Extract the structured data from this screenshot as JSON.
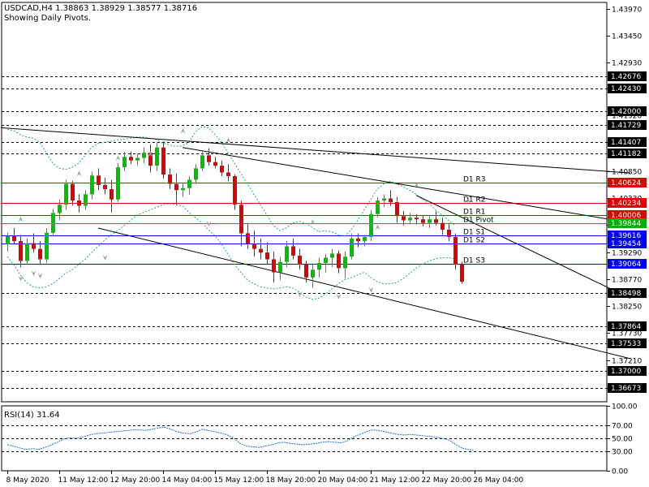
{
  "header": {
    "symbol_line": "USDCAD,H4  1.38863 1.38929 1.38577 1.38716",
    "subtitle": "Showing Daily Pivots."
  },
  "rsi_label": "RSI(14) 31.64",
  "colors": {
    "bull": "#00c000",
    "bear": "#e00000",
    "support": "#0000ff",
    "resistance": "#e00000",
    "pivot": "#00b000",
    "bands": "#1faf5f",
    "trendline": "#000000",
    "fractal": "#a0a0a0"
  },
  "chart_data": [
    {
      "type": "candlestick",
      "price_ticks": [
        "1.43970",
        "1.43450",
        "1.42930",
        "1.42430",
        "1.41920",
        "1.41407",
        "1.40850",
        "1.40330",
        "1.39810",
        "1.39290",
        "1.38770",
        "1.38250",
        "1.37730",
        "1.37210",
        "1.36673"
      ],
      "price_ticks_values": [
        1.4397,
        1.4345,
        1.4293,
        1.4243,
        1.4192,
        1.41407,
        1.4085,
        1.4033,
        1.3981,
        1.3929,
        1.3877,
        1.3825,
        1.3773,
        1.3721,
        1.36673
      ],
      "ylim": [
        1.3641,
        1.4409
      ],
      "x_tick_labels": [
        "8 May 2020",
        "11 May 12:00",
        "12 May 20:00",
        "14 May 04:00",
        "15 May 12:00",
        "18 May 20:00",
        "20 May 04:00",
        "21 May 12:00",
        "22 May 20:00",
        "26 May 04:00"
      ],
      "x_tick_index": [
        0,
        8,
        16,
        24,
        32,
        40,
        48,
        56,
        64,
        72
      ],
      "dashed_levels": [
        1.42676,
        1.4243,
        1.42,
        1.41729,
        1.41407,
        1.41182,
        1.38498,
        1.37864,
        1.37533,
        1.37,
        1.36673
      ],
      "highlight_labels": [
        {
          "label": "1.42676",
          "value": 1.42676,
          "color": "#000000"
        },
        {
          "label": "1.42430",
          "value": 1.4243,
          "color": "#000000"
        },
        {
          "label": "1.42000",
          "value": 1.42,
          "color": "#000000"
        },
        {
          "label": "1.41729",
          "value": 1.41729,
          "color": "#000000"
        },
        {
          "label": "1.41407",
          "value": 1.41407,
          "color": "#000000"
        },
        {
          "label": "1.41182",
          "value": 1.41182,
          "color": "#000000"
        },
        {
          "label": "1.40624",
          "value": 1.40624,
          "color": "#e00000"
        },
        {
          "label": "1.40234",
          "value": 1.40234,
          "color": "#e00000"
        },
        {
          "label": "1.40006",
          "value": 1.40006,
          "color": "#e00000"
        },
        {
          "label": "1.39844",
          "value": 1.39844,
          "color": "#00b000"
        },
        {
          "label": "1.39616",
          "value": 1.39616,
          "color": "#0000ff"
        },
        {
          "label": "1.39454",
          "value": 1.39454,
          "color": "#0000ff"
        },
        {
          "label": "1.39064",
          "value": 1.39064,
          "color": "#0000ff"
        },
        {
          "label": "1.38498",
          "value": 1.38498,
          "color": "#000000"
        },
        {
          "label": "1.37864",
          "value": 1.37864,
          "color": "#000000"
        },
        {
          "label": "1.37533",
          "value": 1.37533,
          "color": "#000000"
        },
        {
          "label": "1.37000",
          "value": 1.37,
          "color": "#000000"
        },
        {
          "label": "1.36673",
          "value": 1.36673,
          "color": "#000000"
        }
      ],
      "pivots": [
        {
          "name": "D1 R3",
          "value": 1.40624,
          "color": "#e00000"
        },
        {
          "name": "D1 R2",
          "value": 1.40234,
          "color": "#e00000"
        },
        {
          "name": "D1 R1",
          "value": 1.40006,
          "color": "#e00000"
        },
        {
          "name": "D1 Pivot",
          "value": 1.39844,
          "color": "#00b000"
        },
        {
          "name": "D1 S1",
          "value": 1.39616,
          "color": "#0000ff"
        },
        {
          "name": "D1 S2",
          "value": 1.39454,
          "color": "#0000ff"
        },
        {
          "name": "D1 S3",
          "value": 1.39064,
          "color": "#0000ff"
        }
      ],
      "candles": [
        [
          1.3944,
          1.3966,
          1.393,
          1.396
        ],
        [
          1.396,
          1.3975,
          1.3945,
          1.395
        ],
        [
          1.395,
          1.3962,
          1.39,
          1.3912
        ],
        [
          1.3912,
          1.3955,
          1.3905,
          1.3946
        ],
        [
          1.3946,
          1.3965,
          1.3928,
          1.3935
        ],
        [
          1.3935,
          1.395,
          1.3905,
          1.3915
        ],
        [
          1.3915,
          1.3975,
          1.3908,
          1.3966
        ],
        [
          1.3966,
          1.4012,
          1.396,
          1.4004
        ],
        [
          1.4004,
          1.403,
          1.399,
          1.402
        ],
        [
          1.402,
          1.4068,
          1.401,
          1.406
        ],
        [
          1.406,
          1.4066,
          1.4018,
          1.4028
        ],
        [
          1.4028,
          1.404,
          1.4005,
          1.4018
        ],
        [
          1.4018,
          1.4048,
          1.401,
          1.404
        ],
        [
          1.404,
          1.4084,
          1.403,
          1.4076
        ],
        [
          1.4076,
          1.409,
          1.4048,
          1.4058
        ],
        [
          1.4058,
          1.4072,
          1.404,
          1.405
        ],
        [
          1.405,
          1.4068,
          1.4005,
          1.403
        ],
        [
          1.403,
          1.41,
          1.4025,
          1.4092
        ],
        [
          1.4092,
          1.4122,
          1.4085,
          1.4112
        ],
        [
          1.4112,
          1.4122,
          1.4098,
          1.4105
        ],
        [
          1.4105,
          1.4118,
          1.4095,
          1.411
        ],
        [
          1.411,
          1.413,
          1.41,
          1.412
        ],
        [
          1.412,
          1.4136,
          1.4082,
          1.4095
        ],
        [
          1.4095,
          1.414,
          1.4085,
          1.413
        ],
        [
          1.413,
          1.4142,
          1.407,
          1.4078
        ],
        [
          1.4078,
          1.409,
          1.405,
          1.406
        ],
        [
          1.406,
          1.408,
          1.402,
          1.4048
        ],
        [
          1.4048,
          1.4062,
          1.4035,
          1.4052
        ],
        [
          1.4052,
          1.4075,
          1.404,
          1.4068
        ],
        [
          1.4068,
          1.4098,
          1.406,
          1.409
        ],
        [
          1.409,
          1.4125,
          1.4085,
          1.4115
        ],
        [
          1.4115,
          1.4128,
          1.4095,
          1.4102
        ],
        [
          1.4102,
          1.4112,
          1.409,
          1.4095
        ],
        [
          1.4095,
          1.4105,
          1.4075,
          1.4082
        ],
        [
          1.4082,
          1.4098,
          1.4065,
          1.4075
        ],
        [
          1.4075,
          1.4078,
          1.401,
          1.402
        ],
        [
          1.402,
          1.4028,
          1.394,
          1.3965
        ],
        [
          1.3965,
          1.3985,
          1.3935,
          1.3945
        ],
        [
          1.3945,
          1.397,
          1.392,
          1.3935
        ],
        [
          1.3935,
          1.3955,
          1.3915,
          1.3928
        ],
        [
          1.3928,
          1.3948,
          1.3905,
          1.3915
        ],
        [
          1.3915,
          1.393,
          1.387,
          1.389
        ],
        [
          1.389,
          1.392,
          1.3875,
          1.391
        ],
        [
          1.391,
          1.395,
          1.39,
          1.394
        ],
        [
          1.394,
          1.3955,
          1.3915,
          1.3922
        ],
        [
          1.3922,
          1.3935,
          1.3895,
          1.3905
        ],
        [
          1.3905,
          1.3912,
          1.387,
          1.388
        ],
        [
          1.388,
          1.3905,
          1.386,
          1.3895
        ],
        [
          1.3895,
          1.3918,
          1.388,
          1.3908
        ],
        [
          1.3908,
          1.3925,
          1.389,
          1.3918
        ],
        [
          1.3918,
          1.3935,
          1.39,
          1.3926
        ],
        [
          1.3926,
          1.3932,
          1.3888,
          1.3898
        ],
        [
          1.3898,
          1.393,
          1.3878,
          1.392
        ],
        [
          1.392,
          1.3965,
          1.3915,
          1.3955
        ],
        [
          1.3955,
          1.3965,
          1.3938,
          1.395
        ],
        [
          1.395,
          1.3962,
          1.394,
          1.3958
        ],
        [
          1.3958,
          1.401,
          1.395,
          1.4002
        ],
        [
          1.4002,
          1.4035,
          1.3995,
          1.4028
        ],
        [
          1.4028,
          1.404,
          1.4015,
          1.4032
        ],
        [
          1.4032,
          1.4048,
          1.4018,
          1.4025
        ],
        [
          1.4025,
          1.4035,
          1.3985,
          1.3998
        ],
        [
          1.3998,
          1.4008,
          1.398,
          1.399
        ],
        [
          1.399,
          1.4004,
          1.3982,
          1.3995
        ],
        [
          1.3995,
          1.4002,
          1.3982,
          1.3992
        ],
        [
          1.3992,
          1.4,
          1.3978,
          1.3985
        ],
        [
          1.3985,
          1.3998,
          1.3975,
          1.3992
        ],
        [
          1.3992,
          1.4008,
          1.398,
          1.3985
        ],
        [
          1.3985,
          1.3995,
          1.3962,
          1.3972
        ],
        [
          1.3972,
          1.3985,
          1.395,
          1.3958
        ],
        [
          1.3958,
          1.3965,
          1.3895,
          1.3905
        ],
        [
          1.3905,
          1.391,
          1.3868,
          1.3872
        ]
      ],
      "upper_band": [
        1.4165,
        1.4162,
        1.4155,
        1.415,
        1.4148,
        1.414,
        1.412,
        1.41,
        1.409,
        1.4088,
        1.4092,
        1.41,
        1.4115,
        1.413,
        1.4138,
        1.414,
        1.4142,
        1.4145,
        1.4146,
        1.4148,
        1.415,
        1.415,
        1.4148,
        1.4145,
        1.4138,
        1.4135,
        1.4132,
        1.4133,
        1.414,
        1.416,
        1.417,
        1.4168,
        1.4155,
        1.414,
        1.412,
        1.41,
        1.408,
        1.406,
        1.404,
        1.402,
        1.4,
        1.398,
        1.397,
        1.3975,
        1.3985,
        1.3988,
        1.3984,
        1.3976,
        1.3968,
        1.397,
        1.3968,
        1.3962,
        1.396,
        1.3972,
        1.399,
        1.401,
        1.403,
        1.405,
        1.406,
        1.4065,
        1.406,
        1.4055,
        1.4048,
        1.404,
        1.403,
        1.4022,
        1.401,
        1.4,
        1.399,
        1.398
      ],
      "lower_band": [
        1.392,
        1.3905,
        1.3885,
        1.387,
        1.3862,
        1.386,
        1.3862,
        1.3868,
        1.3878,
        1.3888,
        1.3895,
        1.3905,
        1.3915,
        1.3928,
        1.394,
        1.3952,
        1.3962,
        1.397,
        1.398,
        1.399,
        1.4,
        1.4005,
        1.401,
        1.4015,
        1.402,
        1.4022,
        1.402,
        1.4018,
        1.4005,
        1.3995,
        1.3985,
        1.3972,
        1.396,
        1.3945,
        1.3925,
        1.3905,
        1.389,
        1.3875,
        1.3868,
        1.3862,
        1.386,
        1.3858,
        1.386,
        1.3862,
        1.386,
        1.3852,
        1.3842,
        1.3838,
        1.384,
        1.3848,
        1.3858,
        1.3868,
        1.3876,
        1.388,
        1.3885,
        1.389,
        1.388,
        1.3872,
        1.3868,
        1.3868,
        1.387,
        1.3878,
        1.3888,
        1.3898,
        1.3906,
        1.3912,
        1.3916,
        1.3918,
        1.3918,
        1.3916
      ],
      "trendlines": [
        {
          "x1": -1,
          "y1": 1.4168,
          "x2": 96,
          "y2": 1.4081
        },
        {
          "x1": 14,
          "y1": 1.3975,
          "x2": 96,
          "y2": 1.3724
        },
        {
          "x1": 27,
          "y1": 1.413,
          "x2": 96,
          "y2": 1.3985
        },
        {
          "x1": 63,
          "y1": 1.4038,
          "x2": 96,
          "y2": 1.384
        }
      ],
      "fractals_up": [
        [
          11,
          1.4068
        ],
        [
          17,
          1.4098
        ],
        [
          22,
          1.4105
        ],
        [
          27,
          1.415
        ],
        [
          34,
          1.4132
        ],
        [
          47,
          1.3975
        ],
        [
          57,
          1.3965
        ],
        [
          63,
          1.4046
        ],
        [
          71,
          1.4015
        ],
        [
          2,
          1.398
        ]
      ],
      "fractals_down": [
        [
          2,
          1.389
        ],
        [
          5,
          1.3895
        ],
        [
          15,
          1.393
        ],
        [
          31,
          1.3995
        ],
        [
          45,
          1.386
        ],
        [
          51,
          1.3855
        ],
        [
          56,
          1.3868
        ],
        [
          4,
          1.39
        ]
      ]
    },
    {
      "type": "line",
      "title": "RSI(14) 31.64",
      "ylim": [
        0,
        100
      ],
      "y_ticks": [
        100,
        70,
        50,
        30,
        0
      ],
      "y_tick_labels": [
        "100.00",
        "70.00",
        "50.00",
        "30.00",
        "0.00"
      ],
      "levels": [
        70,
        50,
        30
      ],
      "values": [
        40,
        38,
        35,
        33,
        34,
        33,
        36,
        40,
        44,
        49,
        51,
        50,
        52,
        55,
        57,
        58,
        59,
        60,
        61,
        62,
        63,
        63,
        62,
        64,
        66,
        67,
        64,
        60,
        58,
        57,
        60,
        64,
        62,
        60,
        58,
        55,
        50,
        42,
        38,
        37,
        36,
        38,
        40,
        43,
        44,
        42,
        41,
        40,
        41,
        42,
        44,
        45,
        44,
        43,
        46,
        52,
        56,
        60,
        63,
        62,
        60,
        58,
        56,
        55,
        56,
        55,
        54,
        53,
        52,
        50,
        48,
        42,
        36,
        33,
        31.64
      ]
    }
  ]
}
